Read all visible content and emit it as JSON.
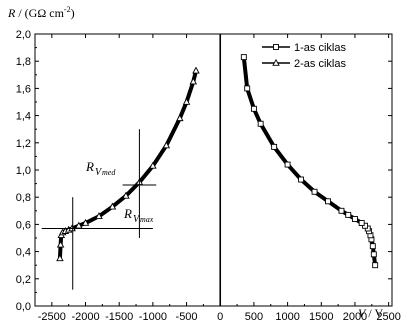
{
  "chart_data": {
    "type": "scatter",
    "ylabel": "R / (GΩ cm",
    "ylabel_sup": "-2",
    "ylabel_end": ")",
    "xlabel": "V / V",
    "xlim": [
      -2750,
      2550
    ],
    "ylim": [
      0,
      2.0
    ],
    "x_ticks": [
      -2500,
      -2000,
      -1500,
      -1000,
      -500,
      0,
      500,
      1000,
      1500,
      2000,
      2500
    ],
    "x_tick_labels": [
      "-2500",
      "-2000",
      "-1500",
      "-1000",
      "-500",
      "0",
      "500",
      "1000",
      "1500",
      "2000",
      "2500"
    ],
    "y_ticks": [
      0,
      0.2,
      0.4,
      0.6,
      0.8,
      1.0,
      1.2,
      1.4,
      1.6,
      1.8,
      2.0
    ],
    "y_tick_labels": [
      "0,0",
      "0,2",
      "0,4",
      "0,6",
      "0,8",
      "1,0",
      "1,2",
      "1,4",
      "1,6",
      "1,8",
      "2,0"
    ],
    "legend_position": "top-right",
    "grid": false,
    "series": [
      {
        "name": "1-as ciklas",
        "marker": "square",
        "x": [
          2300,
          2280,
          2265,
          2245,
          2230,
          2210,
          2190,
          2150,
          2100,
          2000,
          1900,
          1800,
          1600,
          1400,
          1200,
          1000,
          800,
          600,
          500,
          400,
          350
        ],
        "y": [
          0.3,
          0.38,
          0.44,
          0.49,
          0.52,
          0.55,
          0.57,
          0.59,
          0.61,
          0.64,
          0.67,
          0.7,
          0.77,
          0.84,
          0.93,
          1.04,
          1.17,
          1.34,
          1.45,
          1.6,
          1.83
        ]
      },
      {
        "name": "2-as ciklas",
        "marker": "triangle",
        "x": [
          -2380,
          -2370,
          -2360,
          -2340,
          -2300,
          -2250,
          -2200,
          -2100,
          -2000,
          -1800,
          -1600,
          -1400,
          -1200,
          -1000,
          -800,
          -600,
          -500,
          -400,
          -360
        ],
        "y": [
          0.35,
          0.45,
          0.52,
          0.54,
          0.55,
          0.56,
          0.57,
          0.59,
          0.61,
          0.66,
          0.73,
          0.81,
          0.91,
          1.03,
          1.18,
          1.38,
          1.5,
          1.65,
          1.73
        ]
      }
    ],
    "reference_lines": [
      {
        "label_main": "R",
        "label_sub": "V",
        "label_subsub": "med",
        "x": -1200,
        "y": 0.89,
        "x_span": [
          -1450,
          -950
        ],
        "y_span": [
          0.5,
          1.3
        ]
      },
      {
        "label_main": "R",
        "label_sub": "V",
        "label_subsub": "max",
        "x": -2190,
        "y": 0.57,
        "x_span": [
          -2650,
          -1000
        ],
        "y_span": [
          0.12,
          0.8
        ]
      }
    ]
  }
}
